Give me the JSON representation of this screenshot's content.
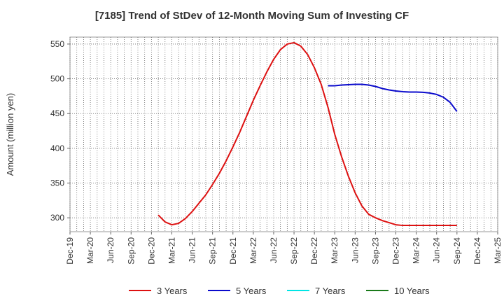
{
  "title": "[7185]  Trend of StDev of 12-Month Moving Sum of Investing CF",
  "chart_data": {
    "type": "line",
    "title": "[7185]  Trend of StDev of 12-Month Moving Sum of Investing CF",
    "ylabel": "Amount (million yen)",
    "xlabel": "",
    "ylim": [
      280,
      560
    ],
    "yticks": [
      300,
      350,
      400,
      450,
      500,
      550
    ],
    "grid": true,
    "legend_position": "bottom",
    "x_tick_labels": [
      "Dec-19",
      "Mar-20",
      "Jun-20",
      "Sep-20",
      "Dec-20",
      "Mar-21",
      "Jun-21",
      "Sep-21",
      "Dec-21",
      "Mar-22",
      "Jun-22",
      "Sep-22",
      "Dec-22",
      "Mar-23",
      "Jun-23",
      "Sep-23",
      "Dec-23",
      "Mar-24",
      "Jun-24",
      "Sep-24",
      "Dec-24",
      "Mar-25"
    ],
    "series": [
      {
        "name": "3 Years",
        "color": "#dd1111",
        "points": [
          [
            "2021-01",
            304
          ],
          [
            "2021-02",
            294
          ],
          [
            "2021-03",
            290
          ],
          [
            "2021-04",
            292
          ],
          [
            "2021-05",
            299
          ],
          [
            "2021-06",
            309
          ],
          [
            "2021-07",
            321
          ],
          [
            "2021-08",
            333
          ],
          [
            "2021-09",
            348
          ],
          [
            "2021-10",
            364
          ],
          [
            "2021-11",
            382
          ],
          [
            "2021-12",
            402
          ],
          [
            "2022-01",
            423
          ],
          [
            "2022-02",
            446
          ],
          [
            "2022-03",
            469
          ],
          [
            "2022-04",
            490
          ],
          [
            "2022-05",
            510
          ],
          [
            "2022-06",
            528
          ],
          [
            "2022-07",
            542
          ],
          [
            "2022-08",
            550
          ],
          [
            "2022-09",
            552
          ],
          [
            "2022-10",
            547
          ],
          [
            "2022-11",
            535
          ],
          [
            "2022-12",
            516
          ],
          [
            "2023-01",
            492
          ],
          [
            "2023-02",
            459
          ],
          [
            "2023-03",
            420
          ],
          [
            "2023-04",
            388
          ],
          [
            "2023-05",
            360
          ],
          [
            "2023-06",
            336
          ],
          [
            "2023-07",
            317
          ],
          [
            "2023-08",
            305
          ],
          [
            "2023-09",
            300
          ],
          [
            "2023-10",
            296
          ],
          [
            "2023-11",
            293
          ],
          [
            "2023-12",
            290
          ],
          [
            "2024-01",
            289
          ],
          [
            "2024-02",
            289
          ],
          [
            "2024-03",
            289
          ],
          [
            "2024-04",
            289
          ],
          [
            "2024-05",
            289
          ],
          [
            "2024-06",
            289
          ],
          [
            "2024-07",
            289
          ],
          [
            "2024-08",
            289
          ],
          [
            "2024-09",
            289
          ]
        ]
      },
      {
        "name": "5 Years",
        "color": "#0a0acc",
        "points": [
          [
            "2023-02",
            490
          ],
          [
            "2023-03",
            490
          ],
          [
            "2023-04",
            491
          ],
          [
            "2023-05",
            491.5
          ],
          [
            "2023-06",
            492
          ],
          [
            "2023-07",
            492
          ],
          [
            "2023-08",
            491
          ],
          [
            "2023-09",
            489
          ],
          [
            "2023-10",
            486
          ],
          [
            "2023-11",
            484
          ],
          [
            "2023-12",
            482.5
          ],
          [
            "2024-01",
            481.5
          ],
          [
            "2024-02",
            481
          ],
          [
            "2024-03",
            481
          ],
          [
            "2024-04",
            480.5
          ],
          [
            "2024-05",
            479.5
          ],
          [
            "2024-06",
            477.5
          ],
          [
            "2024-07",
            473.5
          ],
          [
            "2024-08",
            466
          ],
          [
            "2024-09",
            453
          ]
        ]
      },
      {
        "name": "7 Years",
        "color": "#00e5e5",
        "points": []
      },
      {
        "name": "10 Years",
        "color": "#1a7a1a",
        "points": []
      }
    ]
  }
}
